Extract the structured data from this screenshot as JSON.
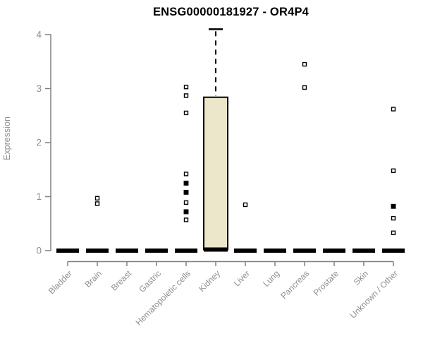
{
  "chart_data": {
    "type": "boxplot",
    "title": "ENSG00000181927 - OR4P4",
    "xlabel": "",
    "ylabel": "Expression",
    "ylim": [
      0,
      4.15
    ],
    "yticks": [
      0,
      1,
      2,
      3,
      4
    ],
    "grid": false,
    "legend": false,
    "colors": {
      "box_fill": "#ECE7CB",
      "box_stroke": "#000000",
      "outlier": "#000000",
      "axis_line": "#808080",
      "tick_label": "#8F8F8F",
      "title": "#000000"
    },
    "categories": [
      "Bladder",
      "Brain",
      "Breast",
      "Gastric",
      "Hematopoietic cells",
      "Kidney",
      "Liver",
      "Lung",
      "Pancreas",
      "Prostate",
      "Skin",
      "Unknown / Other"
    ],
    "series": [
      {
        "name": "Bladder",
        "q1": 0,
        "median": 0,
        "q3": 0,
        "whisker_low": 0,
        "whisker_high": 0,
        "outliers": []
      },
      {
        "name": "Brain",
        "q1": 0,
        "median": 0,
        "q3": 0,
        "whisker_low": 0,
        "whisker_high": 0,
        "outliers": [
          0.97,
          0.87
        ]
      },
      {
        "name": "Breast",
        "q1": 0,
        "median": 0,
        "q3": 0,
        "whisker_low": 0,
        "whisker_high": 0,
        "outliers": []
      },
      {
        "name": "Gastric",
        "q1": 0,
        "median": 0,
        "q3": 0,
        "whisker_low": 0,
        "whisker_high": 0,
        "outliers": []
      },
      {
        "name": "Hematopoietic cells",
        "q1": 0,
        "median": 0,
        "q3": 0,
        "whisker_low": 0,
        "whisker_high": 0,
        "outliers": [
          3.03,
          2.87,
          2.55,
          1.42,
          1.25,
          1.23,
          1.08,
          1.06,
          0.89,
          0.72,
          0.7,
          0.57
        ]
      },
      {
        "name": "Kidney",
        "q1": 0.02,
        "median": 0.02,
        "q3": 2.84,
        "whisker_low": 0,
        "whisker_high": 4.1,
        "outliers": []
      },
      {
        "name": "Liver",
        "q1": 0,
        "median": 0,
        "q3": 0,
        "whisker_low": 0,
        "whisker_high": 0,
        "outliers": [
          0.85
        ]
      },
      {
        "name": "Lung",
        "q1": 0,
        "median": 0,
        "q3": 0,
        "whisker_low": 0,
        "whisker_high": 0,
        "outliers": []
      },
      {
        "name": "Pancreas",
        "q1": 0,
        "median": 0,
        "q3": 0,
        "whisker_low": 0,
        "whisker_high": 0,
        "outliers": [
          3.45,
          3.02
        ]
      },
      {
        "name": "Prostate",
        "q1": 0,
        "median": 0,
        "q3": 0,
        "whisker_low": 0,
        "whisker_high": 0,
        "outliers": []
      },
      {
        "name": "Skin",
        "q1": 0,
        "median": 0,
        "q3": 0,
        "whisker_low": 0,
        "whisker_high": 0,
        "outliers": []
      },
      {
        "name": "Unknown / Other",
        "q1": 0,
        "median": 0,
        "q3": 0,
        "whisker_low": 0,
        "whisker_high": 0,
        "outliers": [
          2.62,
          1.48,
          0.82,
          0.8,
          0.6,
          0.33
        ]
      }
    ]
  }
}
